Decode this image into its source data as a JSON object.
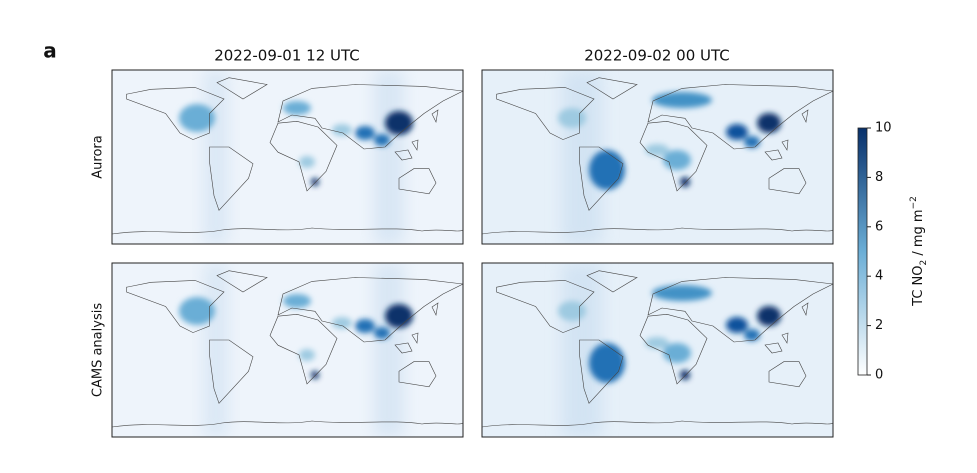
{
  "panel_label": "a",
  "columns": [
    "2022-09-01 12 UTC",
    "2022-09-02 00 UTC"
  ],
  "rows": [
    "Aurora",
    "CAMS analysis"
  ],
  "colorbar": {
    "label": {
      "text": "TC NO",
      "sub": "2",
      "mid": " / mg m",
      "sup": "−2"
    },
    "lim": [
      0,
      10
    ],
    "ticks": [
      0,
      2,
      4,
      6,
      8,
      10
    ],
    "color_low": "#ffffff",
    "color_high": "#08306b"
  }
}
